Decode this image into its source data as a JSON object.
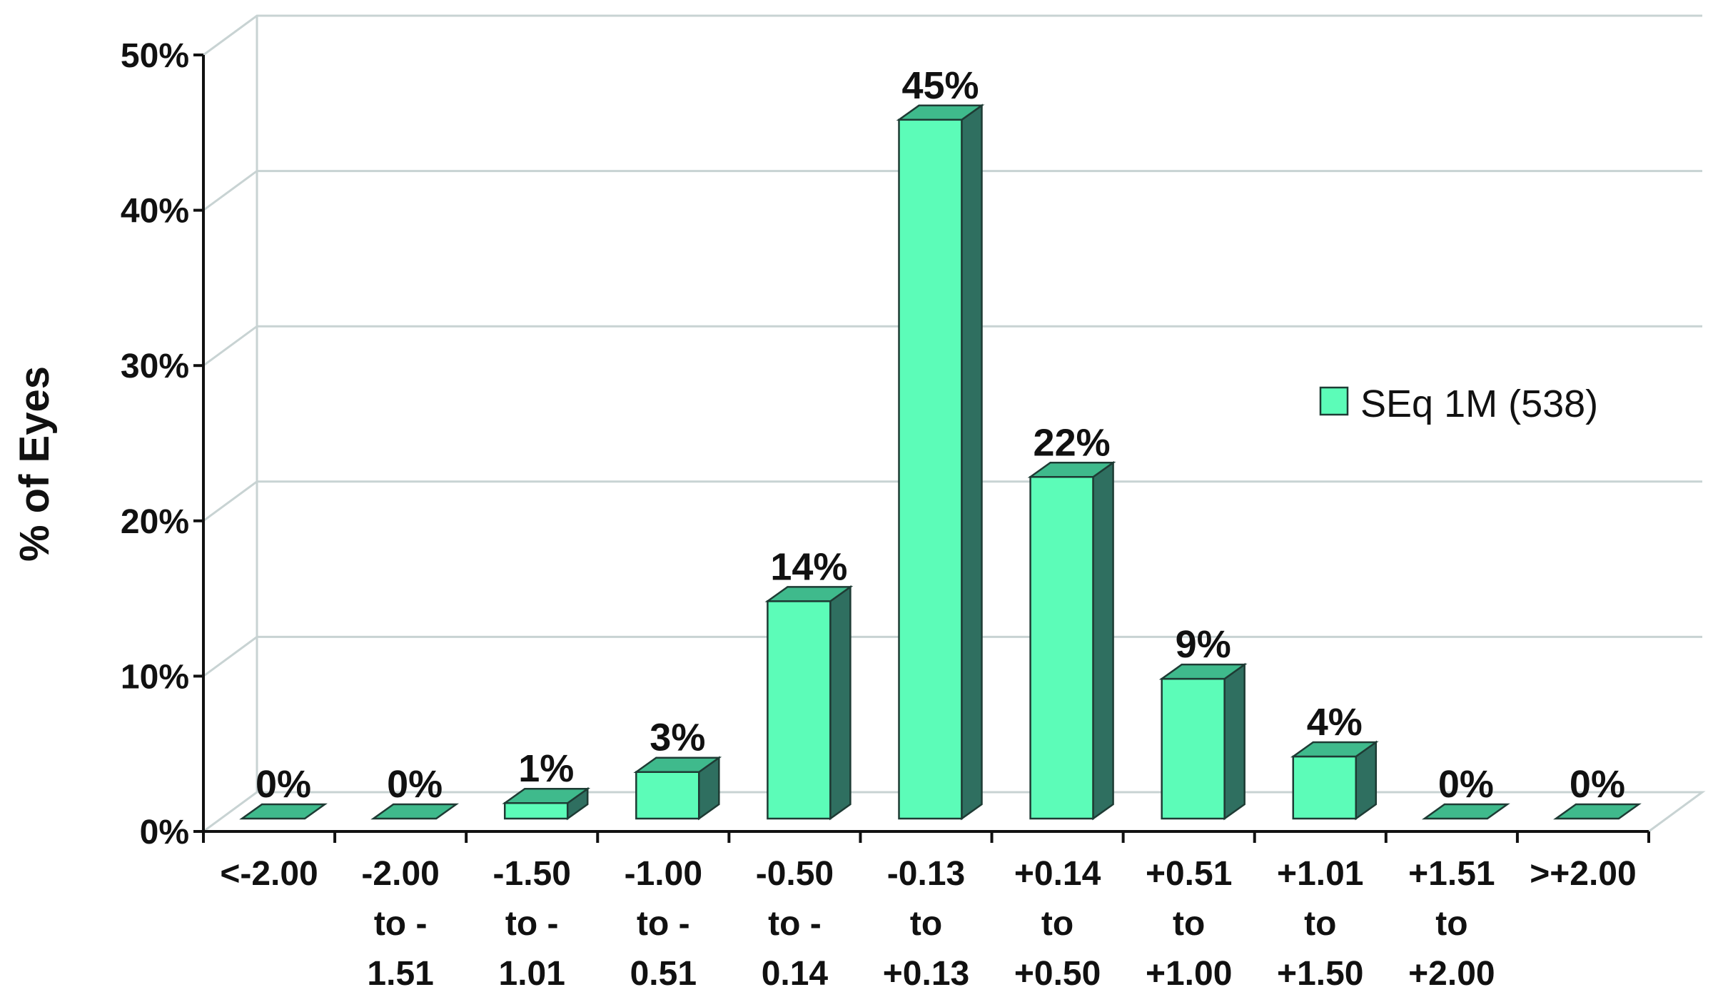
{
  "chart_data": {
    "type": "bar",
    "ylabel": "% of Eyes",
    "ylim": [
      0,
      50
    ],
    "yticks": [
      "0%",
      "10%",
      "20%",
      "30%",
      "40%",
      "50%"
    ],
    "grid": true,
    "legend_position": "right",
    "categories": [
      [
        "<-2.00"
      ],
      [
        "-2.00",
        "to -",
        "1.51"
      ],
      [
        "-1.50",
        "to -",
        "1.01"
      ],
      [
        "-1.00",
        "to -",
        "0.51"
      ],
      [
        "-0.50",
        "to -",
        "0.14"
      ],
      [
        "-0.13",
        "to",
        "+0.13"
      ],
      [
        "+0.14",
        "to",
        "+0.50"
      ],
      [
        "+0.51",
        "to",
        "+1.00"
      ],
      [
        "+1.01",
        "to",
        "+1.50"
      ],
      [
        "+1.51",
        "to",
        "+2.00"
      ],
      [
        ">+2.00"
      ]
    ],
    "series": [
      {
        "name": "SEq 1M (538)",
        "values": [
          0,
          0,
          1,
          3,
          14,
          45,
          22,
          9,
          4,
          0,
          0
        ],
        "labels": [
          "0%",
          "0%",
          "1%",
          "3%",
          "14%",
          "45%",
          "22%",
          "9%",
          "4%",
          "0%",
          "0%"
        ]
      }
    ],
    "colors": {
      "bar_front": "#5cfcb8",
      "bar_top": "#3fba8c",
      "bar_side": "#2f6f60",
      "grid": "#c8d3d3",
      "axis": "#111111"
    }
  }
}
